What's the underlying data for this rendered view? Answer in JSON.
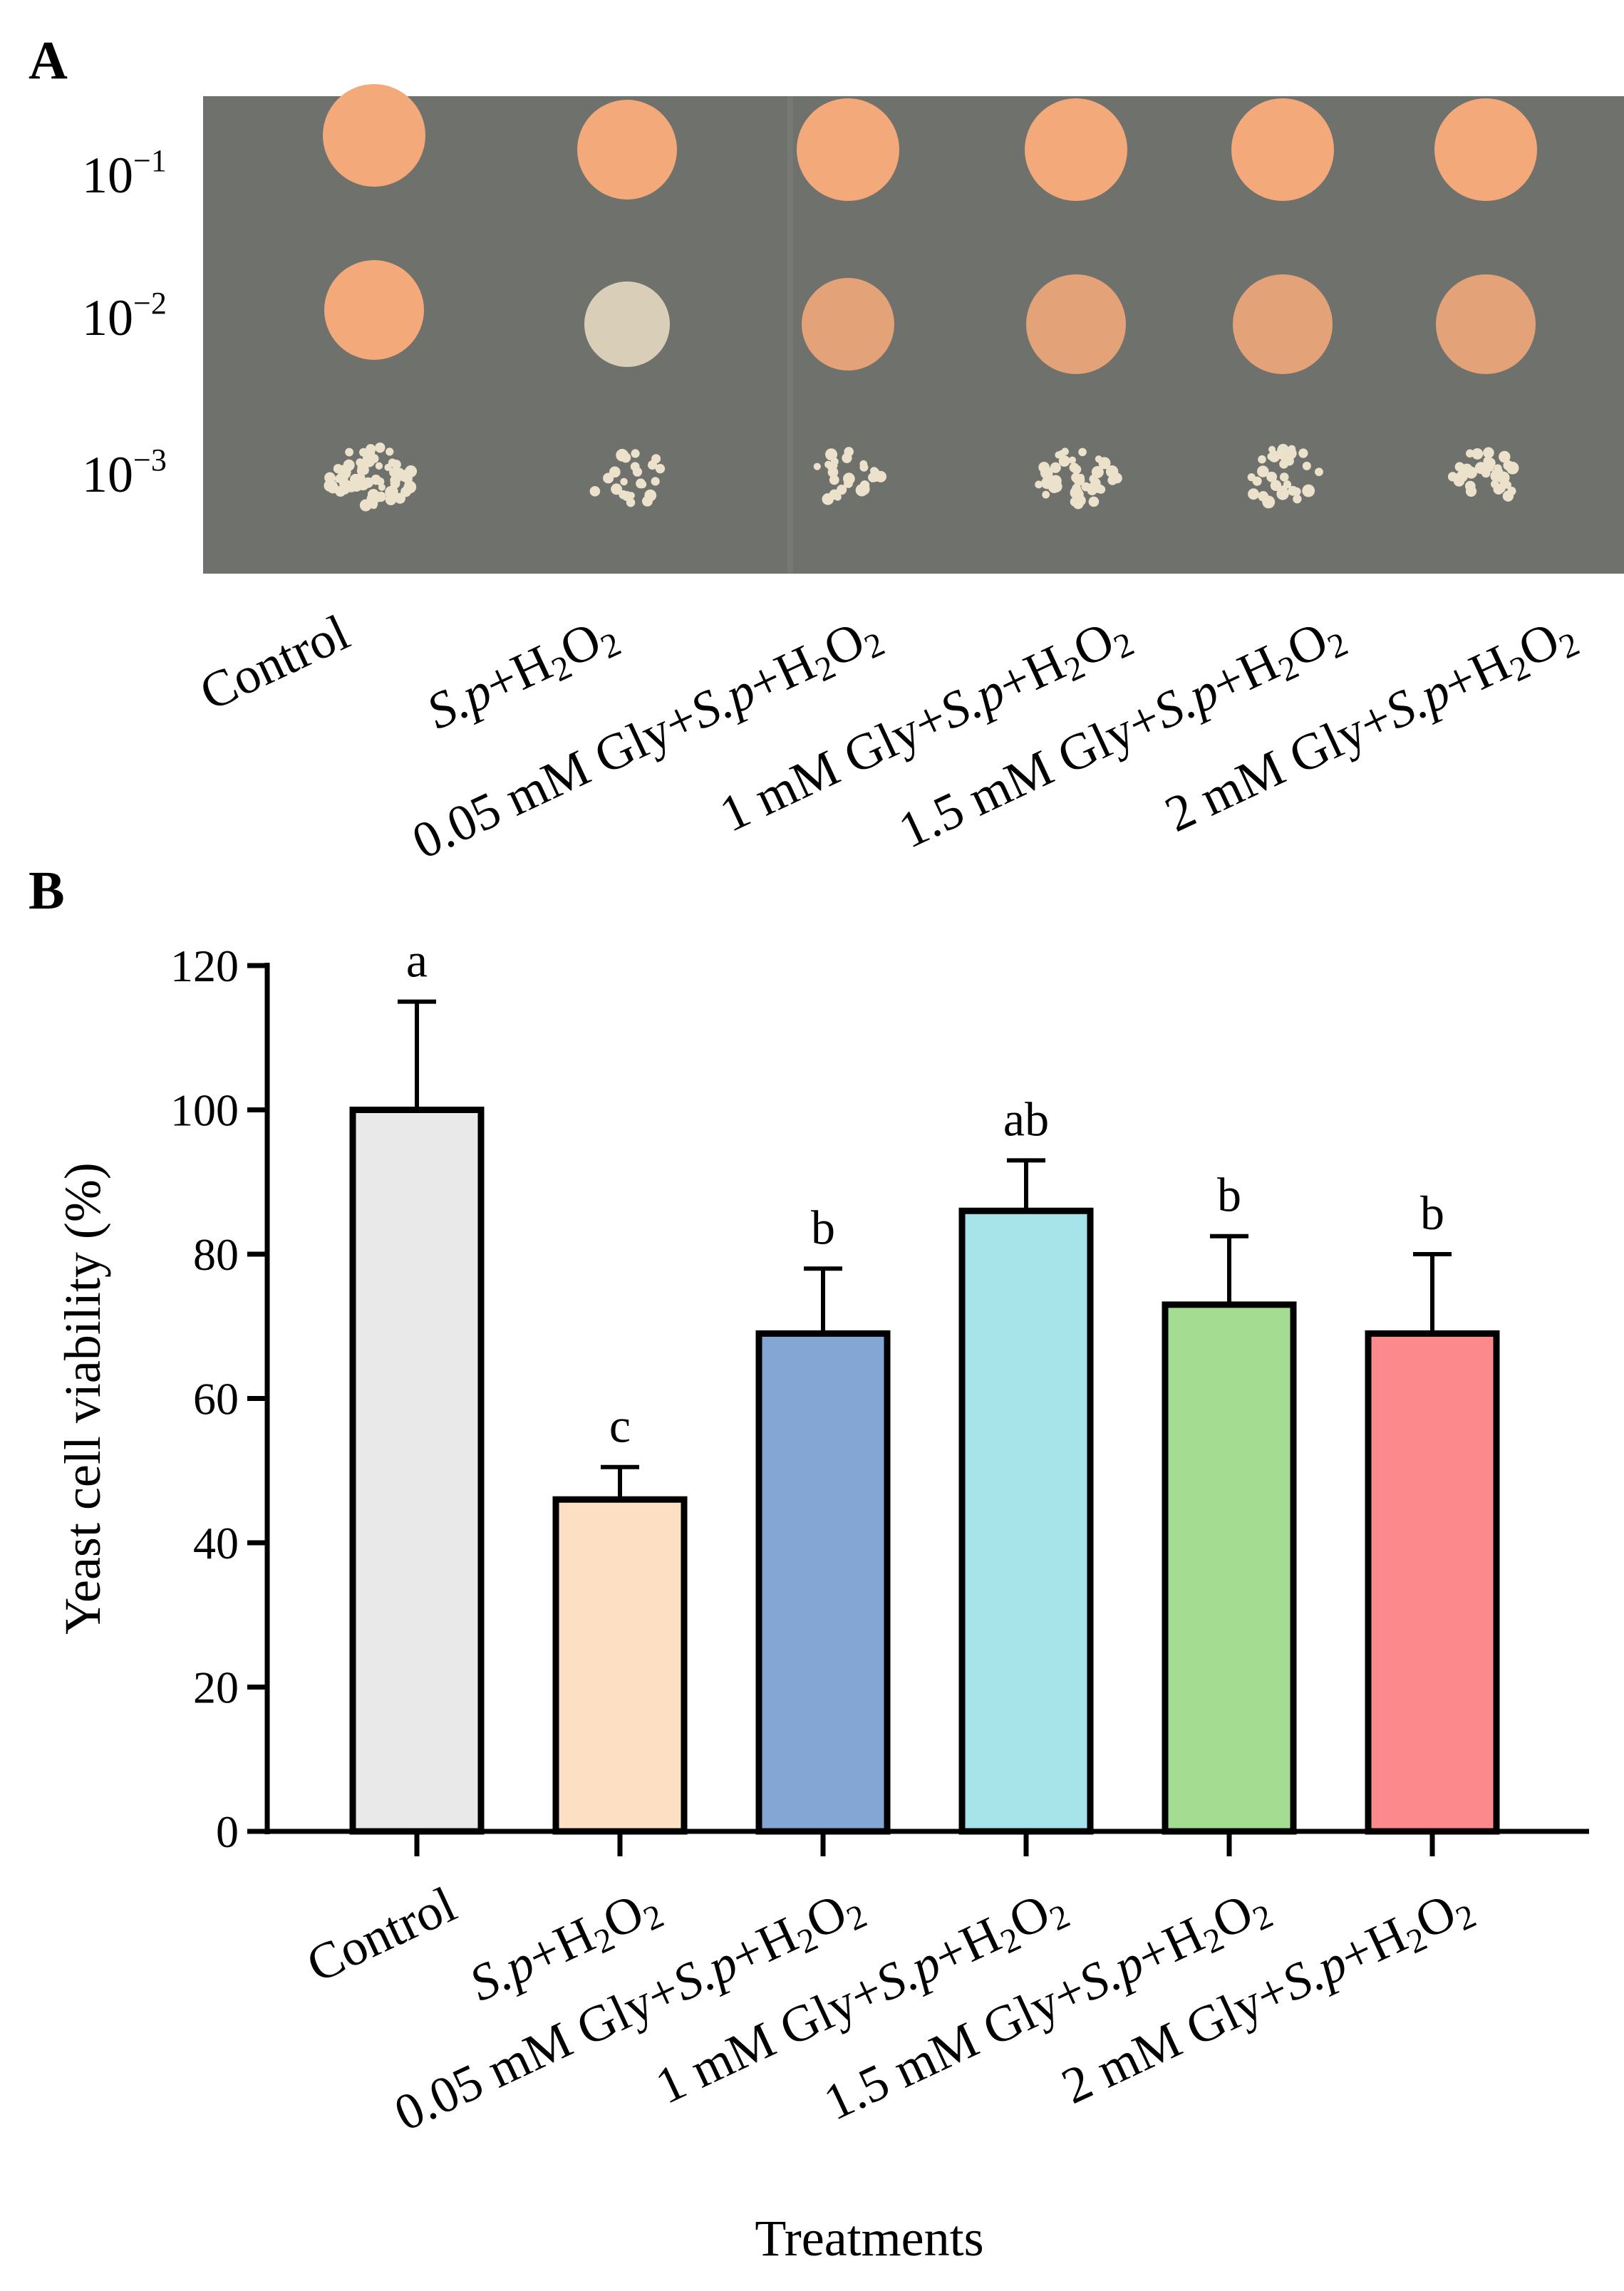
{
  "panel_a": {
    "label": "A",
    "dilutions": [
      {
        "base": "10",
        "exp": "−1"
      },
      {
        "base": "10",
        "exp": "−2"
      },
      {
        "base": "10",
        "exp": "−3"
      }
    ],
    "plate_colors": {
      "agar": "#6f716c",
      "colony": "#f4a97a",
      "sparse": "#e8dcc4"
    }
  },
  "panel_b": {
    "label": "B"
  },
  "treatment_labels": [
    [
      {
        "t": "Control"
      }
    ],
    [
      {
        "t": "S.",
        "i": true
      },
      {
        "t": "p",
        "i": true
      },
      {
        "t": "+H"
      },
      {
        "t": "2",
        "s": true
      },
      {
        "t": "O"
      },
      {
        "t": "2",
        "s": true
      }
    ],
    [
      {
        "t": "0.05 mM Gly+"
      },
      {
        "t": "S.",
        "i": true
      },
      {
        "t": "p",
        "i": true
      },
      {
        "t": "+H"
      },
      {
        "t": "2",
        "s": true
      },
      {
        "t": "O"
      },
      {
        "t": "2",
        "s": true
      }
    ],
    [
      {
        "t": "1 mM Gly+"
      },
      {
        "t": "S.",
        "i": true
      },
      {
        "t": "p",
        "i": true
      },
      {
        "t": "+H"
      },
      {
        "t": "2",
        "s": true
      },
      {
        "t": "O"
      },
      {
        "t": "2",
        "s": true
      }
    ],
    [
      {
        "t": "1.5 mM Gly+"
      },
      {
        "t": "S.",
        "i": true
      },
      {
        "t": "p",
        "i": true
      },
      {
        "t": "+H"
      },
      {
        "t": "2",
        "s": true
      },
      {
        "t": "O"
      },
      {
        "t": "2",
        "s": true
      }
    ],
    [
      {
        "t": "2 mM Gly+"
      },
      {
        "t": "S.",
        "i": true
      },
      {
        "t": "p",
        "i": true
      },
      {
        "t": "+H"
      },
      {
        "t": "2",
        "s": true
      },
      {
        "t": "O"
      },
      {
        "t": "2",
        "s": true
      }
    ]
  ],
  "chart_data": {
    "type": "bar",
    "categories": [
      "Control",
      "S.p+H2O2",
      "0.05 mM Gly+S.p+H2O2",
      "1 mM Gly+S.p+H2O2",
      "1.5 mM Gly+S.p+H2O2",
      "2 mM Gly+S.p+H2O2"
    ],
    "values": [
      100,
      46,
      69,
      86,
      73,
      69
    ],
    "error_upper": [
      115,
      50.5,
      78,
      93,
      82.5,
      80
    ],
    "significance": [
      "a",
      "c",
      "b",
      "ab",
      "b",
      "b"
    ],
    "colors": [
      "#e8e9e8",
      "#fde0c4",
      "#84a6d4",
      "#a6e4ea",
      "#a4dc91",
      "#fc8a8c"
    ],
    "xlabel": "Treatments",
    "ylabel": "Yeast cell viability (%)",
    "ylim": [
      0,
      120
    ],
    "yticks": [
      0,
      20,
      40,
      60,
      80,
      100,
      120
    ],
    "grid": false
  }
}
